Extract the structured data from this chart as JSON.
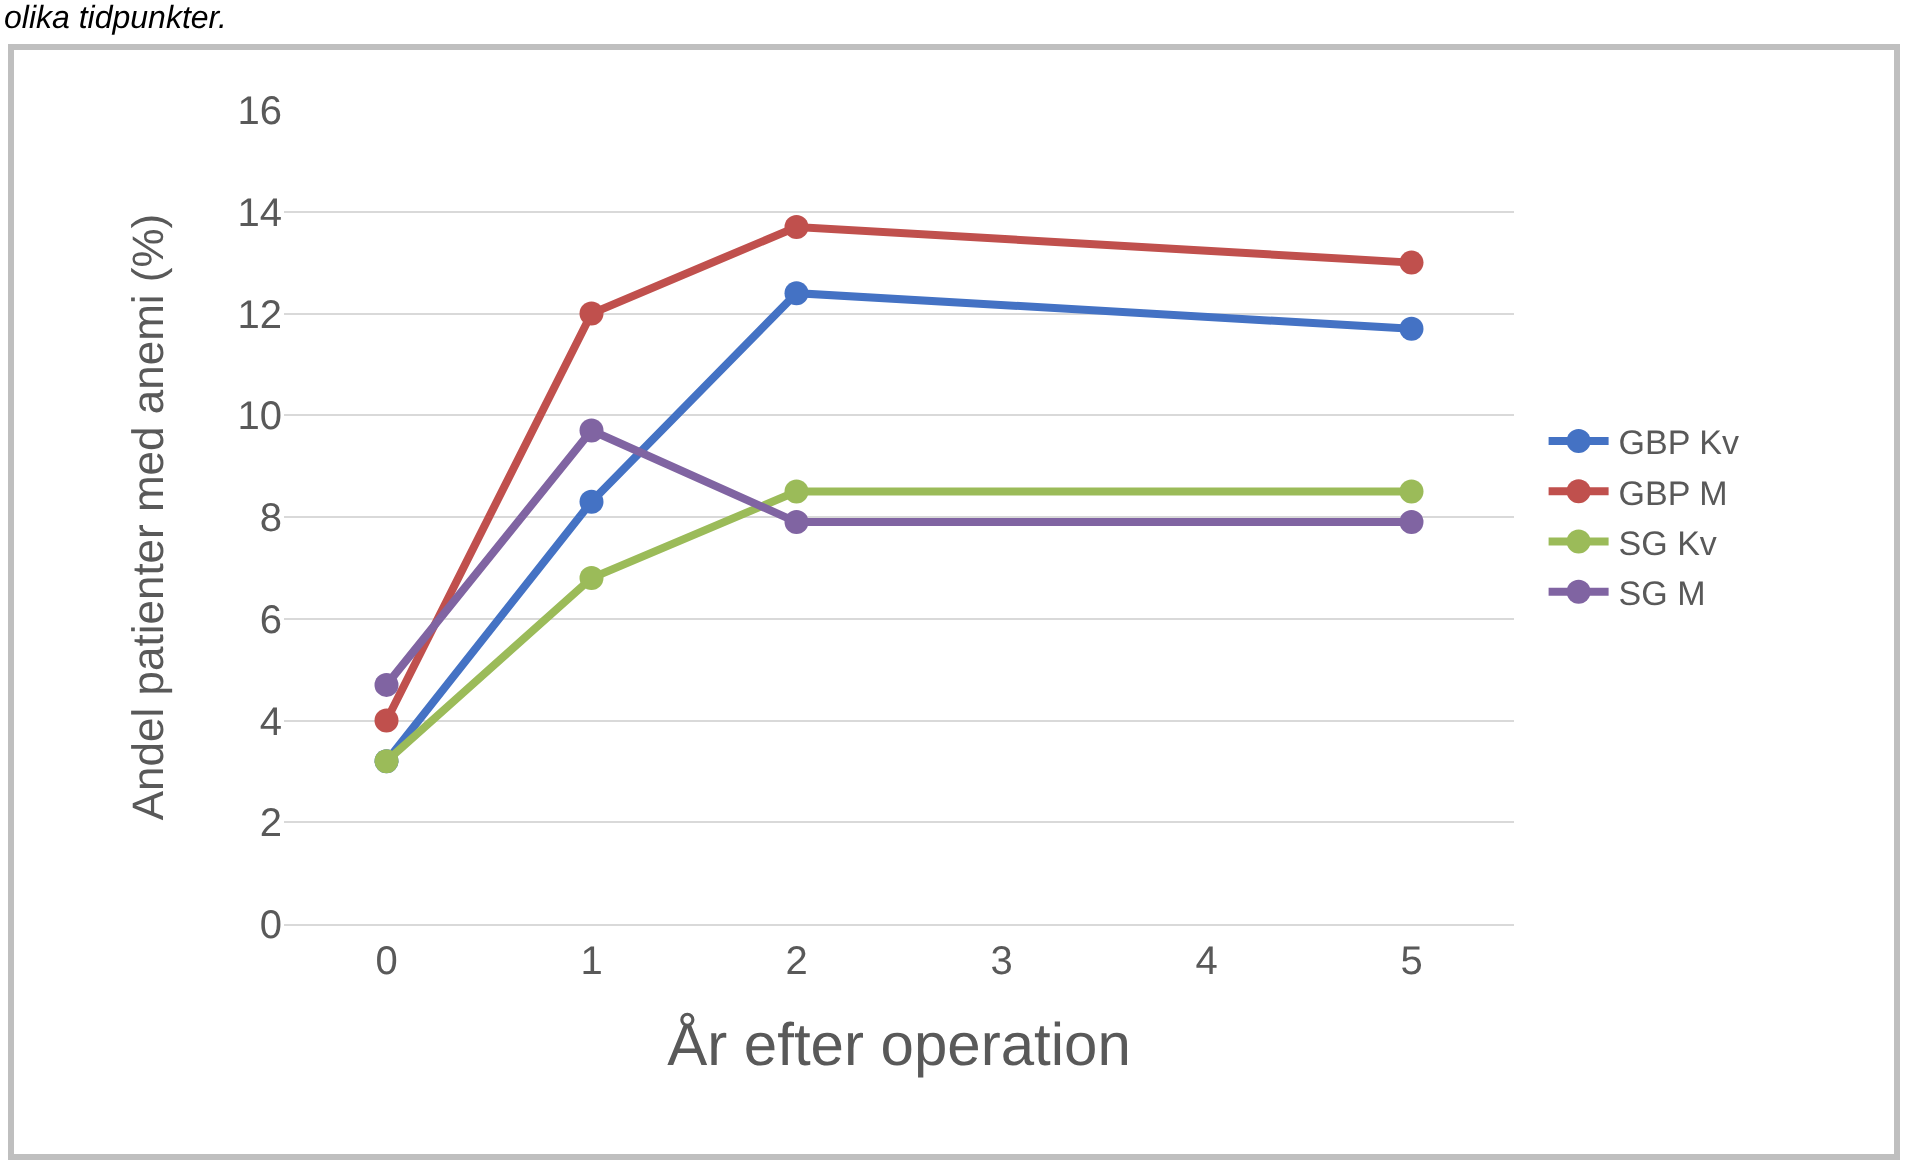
{
  "chart_data": {
    "type": "line",
    "xlabel": "År efter operation",
    "ylabel": "Andel patienter med anemi (%)",
    "annotations": [
      "olika tidpunkter."
    ],
    "categories": [
      "0",
      "1",
      "2",
      "3",
      "4",
      "5"
    ],
    "series": [
      {
        "name": "GBP Kv",
        "color": "#4472c4",
        "values": [
          3.2,
          8.3,
          12.4,
          null,
          null,
          11.7
        ]
      },
      {
        "name": "GBP M",
        "color": "#c0504d",
        "values": [
          4.0,
          12.0,
          13.7,
          null,
          null,
          13.0
        ]
      },
      {
        "name": "SG Kv",
        "color": "#9bbb59",
        "values": [
          3.2,
          6.8,
          8.5,
          null,
          null,
          8.5
        ]
      },
      {
        "name": "SG M",
        "color": "#8064a2",
        "values": [
          4.7,
          9.7,
          7.9,
          null,
          null,
          7.9
        ]
      }
    ],
    "ylim": [
      0,
      16
    ],
    "yticks": [
      0,
      2,
      4,
      6,
      8,
      10,
      12,
      14,
      16
    ],
    "grid": "y",
    "legend": "right",
    "marker": "circle",
    "line_style": "solid"
  }
}
